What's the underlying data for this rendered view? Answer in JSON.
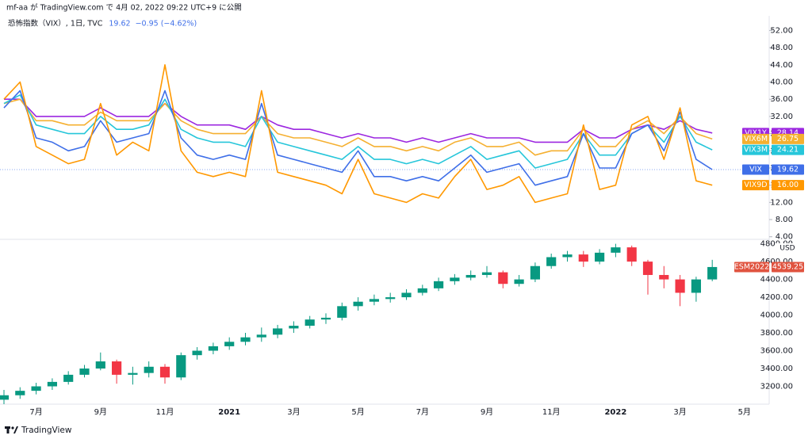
{
  "header": {
    "publisher": "mf-aa が TradingView.com で 4月 02, 2022 09:22 UTC+9 に公開"
  },
  "chart_data": [
    {
      "type": "line",
      "legend_title": "恐怖指数（VIX）, 1日, TVC",
      "legend_value": "19.62",
      "legend_change": "−0.95 (−4.62%)",
      "ylim": [
        3.4,
        55.4
      ],
      "yticks": [
        {
          "value": 4,
          "label": "4.00"
        },
        {
          "value": 8,
          "label": "8.00"
        },
        {
          "value": 12,
          "label": "12.00"
        },
        {
          "value": 16,
          "label": "16.00"
        },
        {
          "value": 20,
          "label": "20.00"
        },
        {
          "value": 24,
          "label": "24.00"
        },
        {
          "value": 28,
          "label": "28.00"
        },
        {
          "value": 32,
          "label": "32.00"
        },
        {
          "value": 36,
          "label": "36.00"
        },
        {
          "value": 40,
          "label": "40.00"
        },
        {
          "value": 44,
          "label": "44.00"
        },
        {
          "value": 48,
          "label": "48.00"
        },
        {
          "value": 52,
          "label": "52.00"
        }
      ],
      "series": [
        {
          "name": "VIX1Y",
          "color": "#9c27e0",
          "values": [
            36,
            36,
            32,
            32,
            32,
            32,
            34,
            32,
            32,
            32,
            35,
            32,
            30,
            30,
            30,
            29,
            32,
            30,
            29,
            29,
            28,
            27,
            28,
            27,
            27,
            26,
            27,
            26,
            27,
            28,
            27,
            27,
            27,
            26,
            26,
            26,
            29,
            27,
            27,
            29,
            30,
            29,
            31,
            29,
            28.14,
            null,
            null
          ]
        },
        {
          "name": "VIX6M",
          "color": "#f5b031",
          "values": [
            35,
            36,
            31,
            31,
            30,
            30,
            33,
            31,
            31,
            31,
            35,
            31,
            29,
            28,
            28,
            28,
            32,
            28,
            27,
            27,
            26,
            25,
            27,
            25,
            25,
            24,
            25,
            24,
            26,
            27,
            25,
            25,
            26,
            23,
            24,
            24,
            29,
            25,
            25,
            29,
            31,
            28,
            32,
            28,
            26.75,
            null,
            null
          ]
        },
        {
          "name": "VIX3M",
          "color": "#26c6da",
          "values": [
            35,
            37,
            30,
            29,
            28,
            28,
            32,
            29,
            29,
            30,
            36,
            29,
            27,
            26,
            26,
            25,
            32,
            26,
            25,
            24,
            23,
            22,
            25,
            22,
            22,
            21,
            22,
            21,
            23,
            25,
            22,
            23,
            24,
            20,
            21,
            22,
            28,
            23,
            23,
            28,
            30,
            26,
            32,
            26,
            24.21,
            null,
            null
          ]
        },
        {
          "name": "VIX",
          "color": "#3f6fe8",
          "values": [
            34,
            38,
            27,
            26,
            24,
            25,
            31,
            26,
            27,
            28,
            38,
            27,
            23,
            22,
            23,
            22,
            35,
            23,
            22,
            21,
            20,
            19,
            24,
            18,
            18,
            17,
            18,
            17,
            20,
            23,
            19,
            20,
            21,
            16,
            17,
            18,
            28,
            20,
            20,
            28,
            30,
            24,
            33,
            22,
            19.62,
            null,
            null
          ]
        },
        {
          "name": "VIX9D",
          "color": "#ff9800",
          "values": [
            36,
            40,
            25,
            23,
            21,
            22,
            35,
            23,
            26,
            24,
            44,
            24,
            19,
            18,
            19,
            18,
            38,
            19,
            18,
            17,
            16,
            14,
            22,
            14,
            13,
            12,
            14,
            13,
            18,
            22,
            15,
            16,
            18,
            12,
            13,
            14,
            30,
            15,
            16,
            30,
            32,
            22,
            34,
            17,
            16,
            null,
            null
          ],
          "value_labels": [
            null,
            null,
            null,
            null,
            null,
            null,
            null,
            null,
            null,
            null,
            null,
            null,
            null,
            null,
            null,
            null,
            null,
            null,
            null,
            null,
            null,
            null,
            null,
            null,
            null,
            null,
            null,
            null,
            null,
            null,
            null,
            null,
            null,
            null,
            null,
            null,
            null,
            null,
            null,
            null,
            null,
            null,
            null,
            null,
            "16.00",
            null,
            null
          ]
        }
      ]
    },
    {
      "type": "candlestick",
      "y_unit": "USD",
      "ylim": [
        3000,
        4850
      ],
      "yticks": [
        {
          "value": 3200,
          "label": "3200.00"
        },
        {
          "value": 3400,
          "label": "3400.00"
        },
        {
          "value": 3600,
          "label": "3600.00"
        },
        {
          "value": 3800,
          "label": "3800.00"
        },
        {
          "value": 4000,
          "label": "4000.00"
        },
        {
          "value": 4200,
          "label": "4200.00"
        },
        {
          "value": 4400,
          "label": "4400.00"
        },
        {
          "value": 4600,
          "label": "4600.00"
        },
        {
          "value": 4800,
          "label": "4800.00"
        }
      ],
      "categories": [
        null,
        null,
        "7月",
        null,
        null,
        null,
        "9月",
        null,
        null,
        null,
        "11月",
        null,
        null,
        null,
        "2021",
        null,
        null,
        null,
        "3月",
        null,
        null,
        null,
        "5月",
        null,
        null,
        null,
        "7月",
        null,
        null,
        null,
        "9月",
        null,
        null,
        null,
        "11月",
        null,
        null,
        null,
        "2022",
        null,
        null,
        null,
        "3月",
        null,
        null,
        null,
        "5月"
      ],
      "series": [
        {
          "name": "ESM2022",
          "color": "#e0533f",
          "up_color": "#089981",
          "down_color": "#f23645",
          "open": [
            3050,
            3100,
            3150,
            3200,
            3250,
            3330,
            3400,
            3480,
            3330,
            3350,
            3420,
            3300,
            3550,
            3600,
            3650,
            3700,
            3750,
            3780,
            3850,
            3880,
            3950,
            3970,
            4100,
            4150,
            4180,
            4200,
            4250,
            4300,
            4380,
            4420,
            4450,
            4480,
            4350,
            4400,
            4550,
            4650,
            4680,
            4600,
            4700,
            4760,
            4600,
            4450,
            4400,
            4250,
            4400,
            null,
            null
          ],
          "high": [
            3160,
            3190,
            3240,
            3290,
            3370,
            3440,
            3580,
            3500,
            3420,
            3480,
            3450,
            3580,
            3640,
            3690,
            3750,
            3800,
            3860,
            3890,
            3930,
            3990,
            4020,
            4140,
            4200,
            4230,
            4250,
            4290,
            4340,
            4420,
            4460,
            4500,
            4550,
            4500,
            4450,
            4590,
            4690,
            4720,
            4720,
            4740,
            4800,
            4780,
            4620,
            4550,
            4450,
            4430,
            4620,
            null,
            null
          ],
          "low": [
            3000,
            3060,
            3110,
            3160,
            3220,
            3300,
            3380,
            3230,
            3220,
            3300,
            3230,
            3270,
            3500,
            3560,
            3610,
            3660,
            3700,
            3740,
            3800,
            3850,
            3900,
            3940,
            4050,
            4110,
            4140,
            4170,
            4220,
            4270,
            4340,
            4390,
            4420,
            4300,
            4320,
            4370,
            4520,
            4600,
            4540,
            4570,
            4650,
            4550,
            4230,
            4300,
            4100,
            4150,
            4380,
            null,
            null
          ],
          "close": [
            3100,
            3150,
            3200,
            3250,
            3330,
            3400,
            3480,
            3330,
            3350,
            3420,
            3300,
            3550,
            3600,
            3650,
            3700,
            3750,
            3780,
            3850,
            3880,
            3950,
            3970,
            4100,
            4150,
            4180,
            4200,
            4250,
            4300,
            4380,
            4420,
            4450,
            4480,
            4350,
            4400,
            4550,
            4650,
            4680,
            4600,
            4700,
            4760,
            4600,
            4450,
            4400,
            4250,
            4400,
            4539.25,
            null,
            null
          ]
        }
      ]
    }
  ],
  "footer": {
    "brand": "TradingView"
  }
}
